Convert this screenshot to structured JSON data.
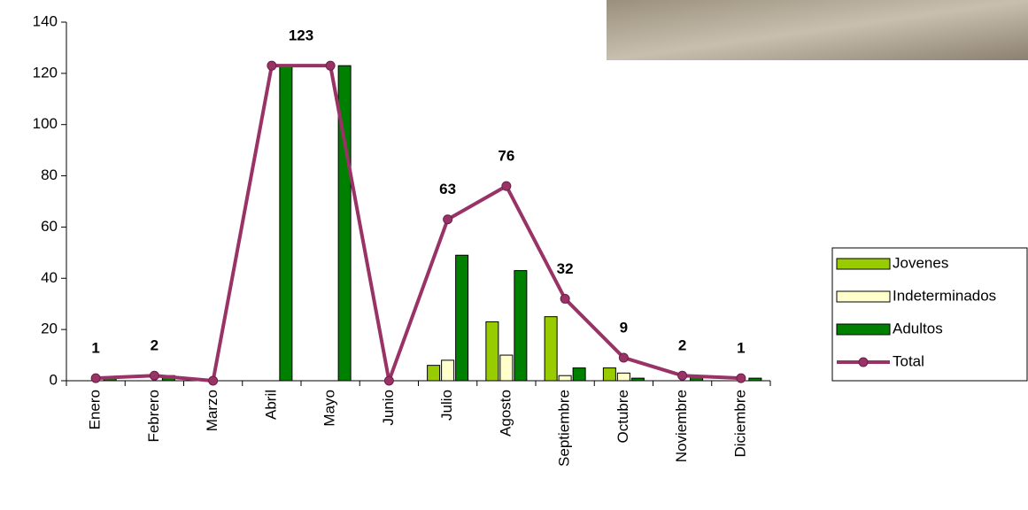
{
  "chart_data": {
    "type": "bar-line",
    "categories": [
      "Enero",
      "Febrero",
      "Marzo",
      "Abril",
      "Mayo",
      "Junio",
      "Julio",
      "Agosto",
      "Septiembre",
      "Octubre",
      "Noviembre",
      "Diciembre"
    ],
    "series": [
      {
        "name": "Jovenes",
        "type": "bar",
        "color": "#99cc00",
        "values": [
          0,
          0,
          0,
          0,
          0,
          0,
          6,
          23,
          25,
          5,
          0,
          0
        ]
      },
      {
        "name": "Indeterminados",
        "type": "bar",
        "color": "#ffffcc",
        "values": [
          0,
          0,
          0,
          0,
          0,
          0,
          8,
          10,
          2,
          3,
          0,
          0
        ]
      },
      {
        "name": "Adultos",
        "type": "bar",
        "color": "#008000",
        "values": [
          1,
          2,
          0,
          123,
          123,
          0,
          49,
          43,
          5,
          1,
          2,
          1
        ]
      },
      {
        "name": "Total",
        "type": "line",
        "color": "#993366",
        "values": [
          1,
          2,
          0,
          123,
          123,
          0,
          63,
          76,
          32,
          9,
          2,
          1
        ],
        "value_labels": [
          "1",
          "2",
          null,
          "123",
          null,
          null,
          "63",
          "76",
          "32",
          "9",
          "2",
          "1"
        ]
      }
    ],
    "ylim": [
      0,
      140
    ],
    "yticks": [
      0,
      20,
      40,
      60,
      80,
      100,
      120,
      140
    ],
    "grid": false,
    "legend": "right"
  }
}
